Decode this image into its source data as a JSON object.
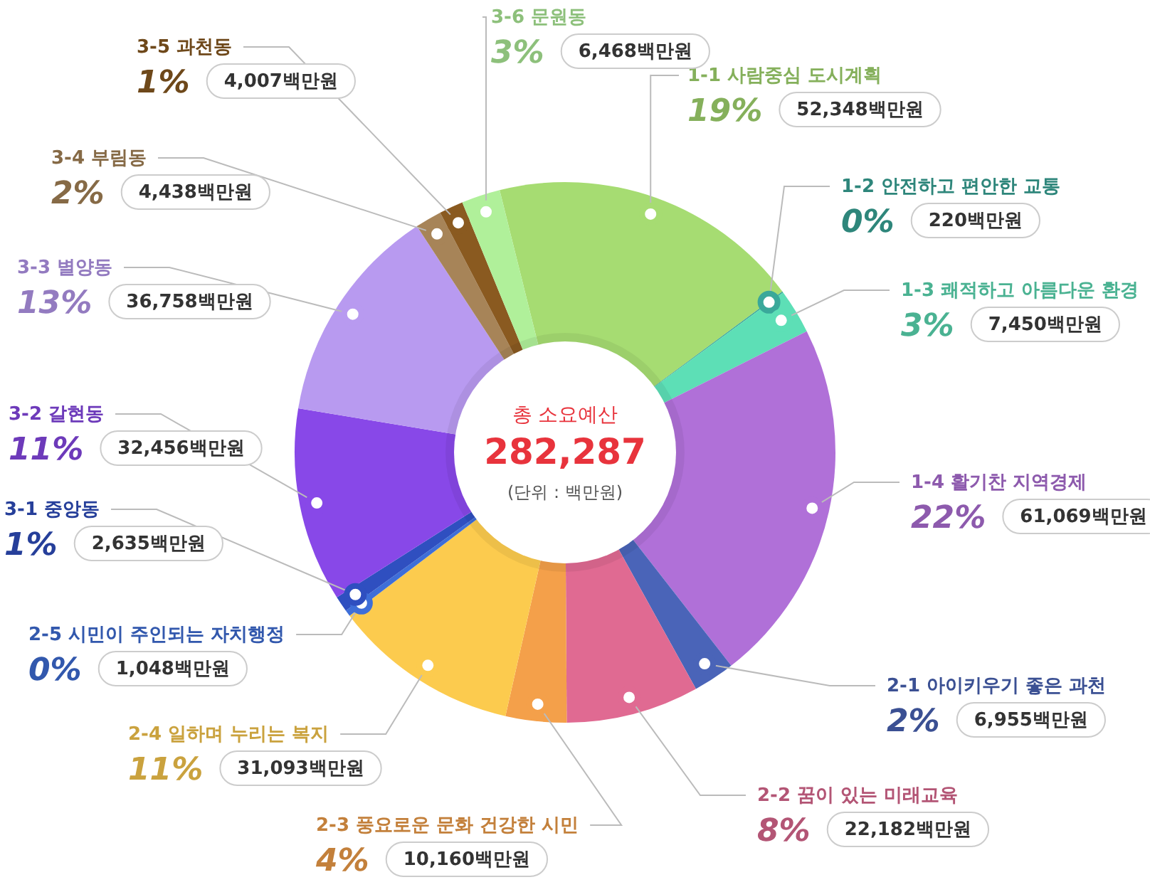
{
  "chart_data": {
    "type": "donut",
    "title": "총 소요예산",
    "subtitle": "282,287",
    "annotations": [
      "(단위 : 백만원)"
    ],
    "categories": [
      "1-1 사람중심 도시계획",
      "1-2 안전하고 편안한 교통",
      "1-3 쾌적하고 아름다운 환경",
      "1-4 활기찬 지역경제",
      "2-1 아이키우기 좋은 과천",
      "2-2 꿈이 있는 미래교육",
      "2-3 풍요로운 문화 건강한 시민",
      "2-4 일하며 누리는 복지",
      "2-5 시민이 주인되는 자치행정",
      "3-1 중앙동",
      "3-2 갈현동",
      "3-3 별양동",
      "3-4 부림동",
      "3-5 과천동",
      "3-6 문원동"
    ],
    "values": [
      52348,
      220,
      7450,
      61069,
      6955,
      22182,
      10160,
      31093,
      1048,
      2635,
      32456,
      36758,
      4438,
      4007,
      6468
    ],
    "value_labels": [
      "19% 52,348백만원",
      "0% 220백만원",
      "3% 7,450백만원",
      "22% 61,069백만원",
      "2% 6,955백만원",
      "8% 22,182백만원",
      "4% 10,160백만원",
      "11% 31,093백만원",
      "0% 1,048백만원",
      "1% 2,635백만원",
      "11% 32,456백만원",
      "13% 36,758백만원",
      "2% 4,438백만원",
      "1% 4,007백만원",
      "3% 6,468백만원"
    ],
    "colors": [
      "#a6dc72",
      "#3aa89a",
      "#5ddfb6",
      "#b070d8",
      "#4a64b8",
      "#e06a92",
      "#f4a04a",
      "#fccb4e",
      "#3e6ed8",
      "#2f4fc0",
      "#8848e8",
      "#b89af0",
      "#a78458",
      "#8a5a20",
      "#b0f09a"
    ]
  }
}
